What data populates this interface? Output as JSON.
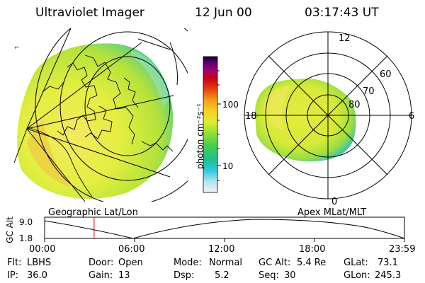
{
  "header": {
    "instrument": "Ultraviolet Imager",
    "date": "12 Jun 00",
    "time": "03:17:43 UT"
  },
  "colorbar": {
    "unit_label": "photon cm⁻²s⁻¹",
    "ticks": [
      "100",
      "10"
    ],
    "colors": [
      "#f0f0f0",
      "#a8e0f0",
      "#30c8e0",
      "#20c0a0",
      "#40d050",
      "#90e030",
      "#d8ec30",
      "#f0f020",
      "#f8c020",
      "#f08010",
      "#e83010",
      "#c00010",
      "#a00060",
      "#600080",
      "#200040"
    ]
  },
  "map_left": {
    "label": "Geographic Lat/Lon"
  },
  "map_right": {
    "label": "Apex MLat/MLT",
    "mlt_labels": {
      "top": "12",
      "left": "18",
      "right": "6",
      "bottom": "0"
    },
    "lat_labels": [
      "60",
      "70",
      "80"
    ]
  },
  "altitude_plot": {
    "ylabel": "GC Alt",
    "y_max": "9.0",
    "y_min": "1.8",
    "x_ticks": [
      "00:00",
      "06:00",
      "12:00",
      "18:00",
      "23:59"
    ],
    "marker_time_hours": 3.3,
    "marker_color": "#e02020"
  },
  "status": {
    "flt_label": "Flt:",
    "flt_value": "LBHS",
    "ip_label": "IP:",
    "ip_value": "36.0",
    "door_label": "Door:",
    "door_value": "Open",
    "gain_label": "Gain:",
    "gain_value": "13",
    "mode_label": "Mode:",
    "mode_value": "Normal",
    "dsp_label": "Dsp:",
    "dsp_value": "5.2",
    "gcalt_label": "GC Alt:",
    "gcalt_value": "5.4 Re",
    "seq_label": "Seq:",
    "seq_value": "30",
    "glat_label": "GLat:",
    "glat_value": "73.1",
    "glon_label": "GLon:",
    "glon_value": "245.3"
  }
}
